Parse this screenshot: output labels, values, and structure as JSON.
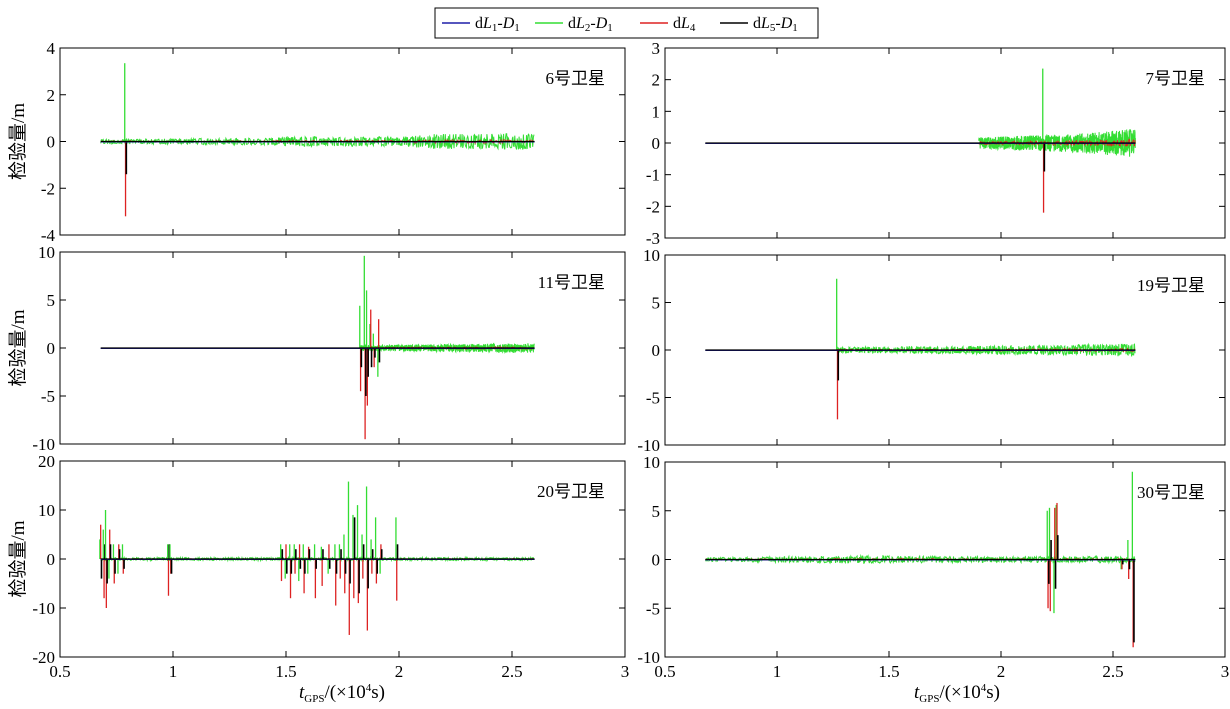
{
  "legend": [
    {
      "parts": [
        [
          "d",
          "n"
        ],
        [
          "L",
          "i"
        ],
        [
          "1",
          "sub"
        ],
        [
          "-",
          "n"
        ],
        [
          "D",
          "i"
        ],
        [
          "1",
          "sub"
        ]
      ],
      "color": "#1f1fa8"
    },
    {
      "parts": [
        [
          "d",
          "n"
        ],
        [
          "L",
          "i"
        ],
        [
          "2",
          "sub"
        ],
        [
          "-",
          "n"
        ],
        [
          "D",
          "i"
        ],
        [
          "1",
          "sub"
        ]
      ],
      "color": "#33dd33"
    },
    {
      "parts": [
        [
          "d",
          "n"
        ],
        [
          "L",
          "i"
        ],
        [
          "4",
          "sub"
        ]
      ],
      "color": "#dd2222"
    },
    {
      "parts": [
        [
          "d",
          "n"
        ],
        [
          "L",
          "i"
        ],
        [
          "5",
          "sub"
        ],
        [
          "-",
          "n"
        ],
        [
          "D",
          "i"
        ],
        [
          "1",
          "sub"
        ]
      ],
      "color": "#000000"
    }
  ],
  "xaxis_label": {
    "main": "t",
    "sub": "GPS",
    "rest": "/(×10",
    "sup": "4",
    "unit": "s)"
  },
  "ylabel": "检验量/m",
  "chart_data": [
    {
      "type": "line",
      "title": "6号卫星",
      "ylabel": "检验量/m",
      "xlim": [
        0.5,
        3
      ],
      "ylim": [
        -4,
        4
      ],
      "xticks": [
        0.5,
        1,
        1.5,
        2,
        2.5,
        3
      ],
      "yticks": [
        -4,
        -2,
        0,
        2,
        4
      ],
      "span": [
        0.68,
        2.6
      ],
      "noise": [
        [
          0.68,
          0.1
        ],
        [
          1.4,
          0.15
        ],
        [
          1.6,
          0.22
        ],
        [
          2.0,
          0.2
        ],
        [
          2.15,
          0.32
        ],
        [
          2.6,
          0.35
        ]
      ],
      "spikes": [
        {
          "x": 0.79,
          "green": 3.35,
          "red": -3.2,
          "black": -1.4
        }
      ]
    },
    {
      "type": "line",
      "title": "7号卫星",
      "ylabel": "",
      "xlim": [
        0.5,
        3
      ],
      "ylim": [
        -3,
        3
      ],
      "xticks": [
        0.5,
        1,
        1.5,
        2,
        2.5,
        3
      ],
      "yticks": [
        -3,
        -2,
        -1,
        0,
        1,
        2,
        3
      ],
      "span": [
        0.68,
        2.6
      ],
      "noise": [
        [
          1.9,
          0.18
        ],
        [
          2.3,
          0.28
        ],
        [
          2.6,
          0.45
        ]
      ],
      "noise_start": 1.9,
      "spikes": [
        {
          "x": 2.19,
          "green": 2.35,
          "red": -2.2,
          "black": -0.9
        }
      ]
    },
    {
      "type": "line",
      "title": "11号卫星",
      "ylabel": "检验量/m",
      "xlim": [
        0.5,
        3
      ],
      "ylim": [
        -10,
        10
      ],
      "xticks": [
        0.5,
        1,
        1.5,
        2,
        2.5,
        3
      ],
      "yticks": [
        -10,
        -5,
        0,
        5,
        10
      ],
      "span": [
        0.68,
        2.6
      ],
      "noise": [
        [
          1.85,
          0.3
        ],
        [
          2.6,
          0.5
        ]
      ],
      "noise_start": 1.83,
      "spikes": [
        {
          "x": 1.83,
          "green": 4.4,
          "red": -4.5,
          "black": -2.0
        },
        {
          "x": 1.85,
          "green": 9.6,
          "red": -9.5,
          "black": -5.0
        },
        {
          "x": 1.86,
          "green": 6.0,
          "red": -6.0,
          "black": -3.0
        },
        {
          "x": 1.875,
          "green": 2.5,
          "red": 4.0,
          "black": -2.0
        },
        {
          "x": 1.89,
          "green": 1.5,
          "red": -2.0,
          "black": -1.0
        },
        {
          "x": 1.91,
          "green": -3.0,
          "red": 3.0,
          "black": -1.5
        }
      ]
    },
    {
      "type": "line",
      "title": "19号卫星",
      "ylabel": "",
      "xlim": [
        0.5,
        3
      ],
      "ylim": [
        -10,
        10
      ],
      "xticks": [
        0.5,
        1,
        1.5,
        2,
        2.5,
        3
      ],
      "yticks": [
        -10,
        -5,
        0,
        5,
        10
      ],
      "span": [
        0.68,
        2.6
      ],
      "noise": [
        [
          1.27,
          0.3
        ],
        [
          2.2,
          0.5
        ],
        [
          2.6,
          0.7
        ]
      ],
      "noise_start": 1.27,
      "spikes": [
        {
          "x": 1.27,
          "green": 7.5,
          "red": -7.3,
          "black": -3.2
        }
      ]
    },
    {
      "type": "line",
      "title": "20号卫星",
      "ylabel": "检验量/m",
      "xlim": [
        0.5,
        3
      ],
      "ylim": [
        -20,
        20
      ],
      "xticks": [
        0.5,
        1,
        1.5,
        2,
        2.5,
        3
      ],
      "yticks": [
        -20,
        -10,
        0,
        10,
        20
      ],
      "span": [
        0.68,
        2.6
      ],
      "noise": [
        [
          0.68,
          0.3
        ],
        [
          2.6,
          0.3
        ]
      ],
      "spikes": [
        {
          "x": 0.68,
          "green": 4.0,
          "red": 7.0,
          "black": -4.0
        },
        {
          "x": 0.695,
          "green": 6.0,
          "red": -8.0,
          "black": 3.0
        },
        {
          "x": 0.705,
          "green": 10.0,
          "red": -10.0,
          "black": -5.0
        },
        {
          "x": 0.72,
          "green": -4.0,
          "red": 6.0,
          "black": 3.0
        },
        {
          "x": 0.74,
          "green": 3.0,
          "red": -5.0,
          "black": -3.0
        },
        {
          "x": 0.76,
          "green": -3.0,
          "red": 3.0,
          "black": 2.0
        },
        {
          "x": 0.78,
          "green": 3.0,
          "red": -3.0,
          "black": -2.0
        },
        {
          "x": 0.98,
          "green": 3.0,
          "red": -7.5,
          "black": 3.0
        },
        {
          "x": 0.99,
          "green": 3.0,
          "red": -3.0,
          "black": -3.0
        },
        {
          "x": 1.48,
          "green": 3.0,
          "red": -4.5,
          "black": 2.0
        },
        {
          "x": 1.5,
          "green": -4.0,
          "red": 3.0,
          "black": -3.0
        },
        {
          "x": 1.52,
          "green": 3.0,
          "red": -8.0,
          "black": -3.0
        },
        {
          "x": 1.54,
          "green": 3.0,
          "red": -3.0,
          "black": 2.0
        },
        {
          "x": 1.56,
          "green": -4.5,
          "red": 3.0,
          "black": -2.0
        },
        {
          "x": 1.58,
          "green": 3.0,
          "red": -7.0,
          "black": -3.0
        },
        {
          "x": 1.6,
          "green": -3.0,
          "red": 2.5,
          "black": 2.0
        },
        {
          "x": 1.63,
          "green": 3.0,
          "red": -8.0,
          "black": -2.0
        },
        {
          "x": 1.66,
          "green": 2.5,
          "red": -5.5,
          "black": 2.0
        },
        {
          "x": 1.69,
          "green": -3.0,
          "red": 3.0,
          "black": -2.0
        },
        {
          "x": 1.72,
          "green": 3.0,
          "red": -9.5,
          "black": -3.0
        },
        {
          "x": 1.74,
          "green": 3.0,
          "red": -4.0,
          "black": 2.0
        },
        {
          "x": 1.76,
          "green": 5.0,
          "red": -7.0,
          "black": -3.0
        },
        {
          "x": 1.78,
          "green": 15.8,
          "red": -15.5,
          "black": -5.0
        },
        {
          "x": 1.8,
          "green": 9.0,
          "red": -8.0,
          "black": 8.5
        },
        {
          "x": 1.82,
          "green": 11.0,
          "red": -9.0,
          "black": -7.0
        },
        {
          "x": 1.84,
          "green": 5.0,
          "red": -4.0,
          "black": 3.0
        },
        {
          "x": 1.86,
          "green": 14.8,
          "red": -14.6,
          "black": -6.0
        },
        {
          "x": 1.88,
          "green": 4.0,
          "red": -3.0,
          "black": 2.0
        },
        {
          "x": 1.9,
          "green": 8.5,
          "red": -5.0,
          "black": -3.0
        },
        {
          "x": 1.92,
          "green": -3.0,
          "red": 3.0,
          "black": 2.0
        },
        {
          "x": 1.99,
          "green": 8.5,
          "red": -8.5,
          "black": 3.0
        }
      ]
    },
    {
      "type": "line",
      "title": "30号卫星",
      "ylabel": "",
      "xlim": [
        0.5,
        3
      ],
      "ylim": [
        -10,
        10
      ],
      "xticks": [
        0.5,
        1,
        1.5,
        2,
        2.5,
        3
      ],
      "yticks": [
        -10,
        -5,
        0,
        5,
        10
      ],
      "span": [
        0.68,
        2.6
      ],
      "noise": [
        [
          0.68,
          0.2
        ],
        [
          1.4,
          0.4
        ],
        [
          2.0,
          0.3
        ],
        [
          2.6,
          0.35
        ]
      ],
      "spikes": [
        {
          "x": 2.21,
          "green": 5.0,
          "red": -5.0,
          "black": -2.5
        },
        {
          "x": 2.22,
          "green": 5.3,
          "red": -5.3,
          "black": 2.0
        },
        {
          "x": 2.24,
          "green": -5.5,
          "red": 5.3,
          "black": -3.0
        },
        {
          "x": 2.25,
          "green": 5.6,
          "red": 5.8,
          "black": 2.5
        },
        {
          "x": 2.54,
          "green": -1.0,
          "red": -1.0,
          "black": -0.5
        },
        {
          "x": 2.57,
          "green": 2.0,
          "red": -2.0,
          "black": -1.0
        },
        {
          "x": 2.59,
          "green": 9.0,
          "red": -9.0,
          "black": -8.5
        }
      ]
    }
  ]
}
